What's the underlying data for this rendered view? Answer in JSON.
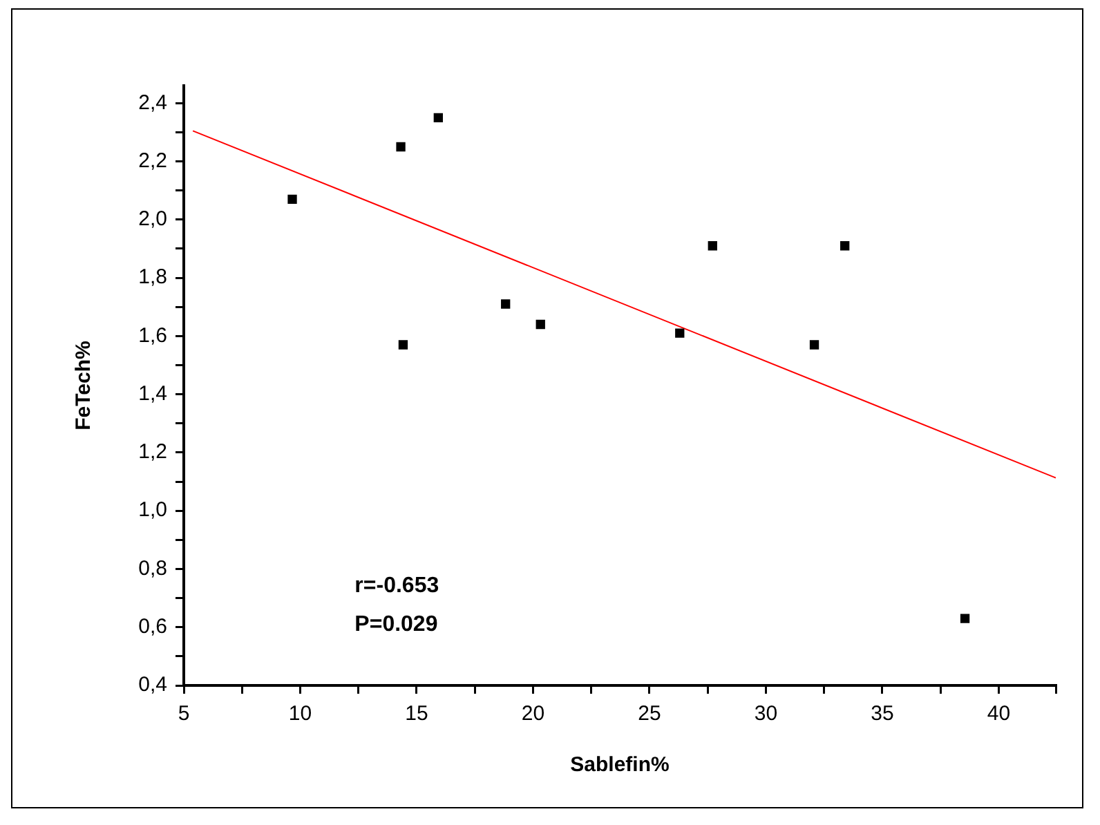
{
  "chart_data": {
    "type": "scatter",
    "xlabel": "Sablefin%",
    "ylabel": "FeTech%",
    "marker": "square",
    "xlim": [
      5,
      42.45
    ],
    "xticks": [
      5,
      {
        "value": 7.5,
        "label": null
      },
      10,
      {
        "value": 12.5,
        "label": null
      },
      15,
      {
        "value": 17.5,
        "label": null
      },
      20,
      {
        "value": 22.5,
        "label": null
      },
      25,
      {
        "value": 27.5,
        "label": null
      },
      30,
      {
        "value": 32.5,
        "label": null
      },
      35,
      {
        "value": 37.5,
        "label": null
      },
      40,
      {
        "value": 42.45,
        "label": null
      }
    ],
    "ylim": [
      0.4,
      2.46
    ],
    "yticks": [
      {
        "value": 0.4,
        "label": "0,4"
      },
      {
        "value": 0.5,
        "label": null
      },
      {
        "value": 0.6,
        "label": "0,6"
      },
      {
        "value": 0.7,
        "label": null
      },
      {
        "value": 0.8,
        "label": "0,8"
      },
      {
        "value": 0.9,
        "label": null
      },
      {
        "value": 1.0,
        "label": "1,0"
      },
      {
        "value": 1.1,
        "label": null
      },
      {
        "value": 1.2,
        "label": "1,2"
      },
      {
        "value": 1.3,
        "label": null
      },
      {
        "value": 1.4,
        "label": "1,4"
      },
      {
        "value": 1.5,
        "label": null
      },
      {
        "value": 1.6,
        "label": "1,6"
      },
      {
        "value": 1.7,
        "label": null
      },
      {
        "value": 1.8,
        "label": "1,8"
      },
      {
        "value": 1.9,
        "label": null
      },
      {
        "value": 2.0,
        "label": "2,0"
      },
      {
        "value": 2.1,
        "label": null
      },
      {
        "value": 2.2,
        "label": "2,2"
      },
      {
        "value": 2.3,
        "label": null
      },
      {
        "value": 2.4,
        "label": "2,4"
      }
    ],
    "x": [
      9.66,
      14.32,
      15.93,
      14.42,
      18.82,
      20.32,
      26.3,
      27.71,
      32.08,
      33.39,
      38.55
    ],
    "series": [
      {
        "color": "#000000",
        "values": [
          2.07,
          2.25,
          2.35,
          1.57,
          1.71,
          1.64,
          1.61,
          1.91,
          1.57,
          1.91,
          0.63
        ]
      },
      {
        "type": "line",
        "color": "#ff0000",
        "marker": "none",
        "x": [
          5.39,
          42.45
        ],
        "values": [
          2.305,
          1.113
        ]
      }
    ],
    "annotations": [
      "r=-0.653",
      "P=0.029"
    ]
  }
}
